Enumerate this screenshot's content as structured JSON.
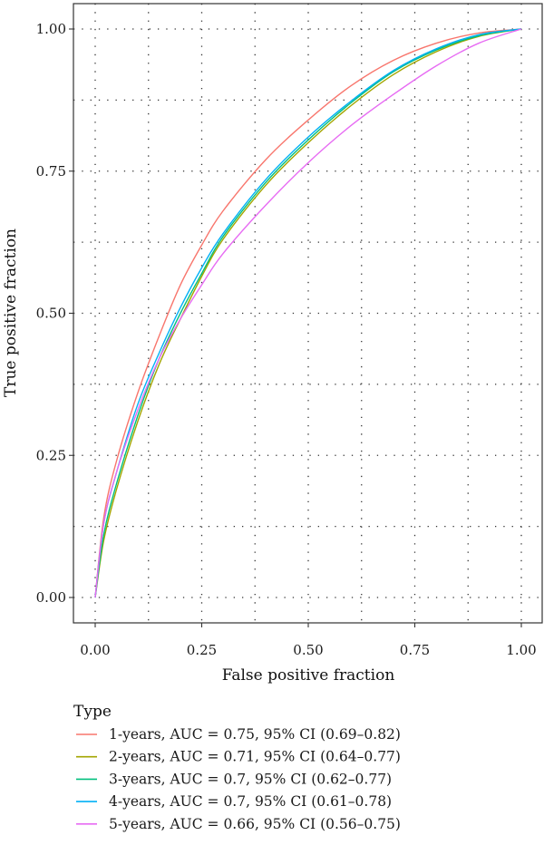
{
  "chart_data": {
    "type": "line",
    "xlabel": "False positive fraction",
    "ylabel": "True positive fraction",
    "xlim": [
      0,
      1
    ],
    "ylim": [
      0,
      1
    ],
    "x_ticks": [
      0,
      0.25,
      0.5,
      0.75,
      1
    ],
    "y_ticks": [
      0,
      0.25,
      0.5,
      0.75,
      1
    ],
    "x_tick_labels": [
      "0.00",
      "0.25",
      "0.50",
      "0.75",
      "1.00"
    ],
    "y_tick_labels": [
      "0.00",
      "0.25",
      "0.50",
      "0.75",
      "1.00"
    ],
    "minor_grid": [
      0.125,
      0.375,
      0.625,
      0.875
    ],
    "grid": "dotted",
    "legend_title": "Type",
    "legend_position": "bottom",
    "series": [
      {
        "name": "1-years, AUC = 0.75, 95% CI (0.69–0.82)",
        "color": "#F8766D",
        "x": [
          0,
          0.02,
          0.05,
          0.1,
          0.15,
          0.2,
          0.25,
          0.3,
          0.4,
          0.5,
          0.6,
          0.7,
          0.8,
          0.9,
          1.0
        ],
        "y": [
          0,
          0.14,
          0.24,
          0.36,
          0.46,
          0.55,
          0.62,
          0.68,
          0.77,
          0.84,
          0.9,
          0.945,
          0.975,
          0.993,
          1.0
        ]
      },
      {
        "name": "2-years, AUC = 0.71, 95% CI (0.64–0.77)",
        "color": "#A3A500",
        "x": [
          0,
          0.02,
          0.05,
          0.1,
          0.15,
          0.2,
          0.25,
          0.3,
          0.4,
          0.5,
          0.6,
          0.7,
          0.8,
          0.9,
          1.0
        ],
        "y": [
          0,
          0.1,
          0.19,
          0.31,
          0.41,
          0.49,
          0.565,
          0.63,
          0.725,
          0.8,
          0.865,
          0.92,
          0.96,
          0.987,
          1.0
        ]
      },
      {
        "name": "3-years, AUC = 0.7, 95% CI (0.62–0.77)",
        "color": "#00BF7D",
        "x": [
          0,
          0.02,
          0.05,
          0.1,
          0.15,
          0.2,
          0.25,
          0.3,
          0.4,
          0.5,
          0.6,
          0.7,
          0.8,
          0.9,
          1.0
        ],
        "y": [
          0,
          0.11,
          0.2,
          0.32,
          0.42,
          0.5,
          0.57,
          0.635,
          0.73,
          0.805,
          0.87,
          0.925,
          0.963,
          0.988,
          1.0
        ]
      },
      {
        "name": "4-years, AUC = 0.7, 95% CI (0.61–0.78)",
        "color": "#00B0F6",
        "x": [
          0,
          0.02,
          0.05,
          0.1,
          0.15,
          0.2,
          0.25,
          0.3,
          0.4,
          0.5,
          0.6,
          0.7,
          0.8,
          0.9,
          1.0
        ],
        "y": [
          0,
          0.13,
          0.22,
          0.34,
          0.43,
          0.51,
          0.58,
          0.64,
          0.735,
          0.81,
          0.873,
          0.927,
          0.965,
          0.99,
          1.0
        ]
      },
      {
        "name": "5-years, AUC = 0.66, 95% CI (0.56–0.75)",
        "color": "#E76BF3",
        "x": [
          0,
          0.02,
          0.05,
          0.1,
          0.15,
          0.2,
          0.25,
          0.3,
          0.4,
          0.5,
          0.6,
          0.7,
          0.8,
          0.9,
          1.0
        ],
        "y": [
          0,
          0.13,
          0.22,
          0.33,
          0.42,
          0.49,
          0.55,
          0.605,
          0.69,
          0.765,
          0.83,
          0.885,
          0.935,
          0.975,
          1.0
        ]
      }
    ]
  }
}
